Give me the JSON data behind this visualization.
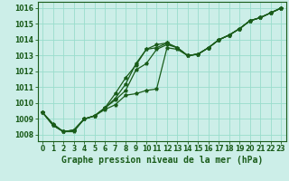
{
  "title": "Graphe pression niveau de la mer (hPa)",
  "bg_color": "#cceee8",
  "grid_color": "#99ddcc",
  "line_color": "#1a5c1a",
  "ylim": [
    1007.6,
    1016.4
  ],
  "xlim": [
    -0.5,
    23.5
  ],
  "yticks": [
    1008,
    1009,
    1010,
    1011,
    1012,
    1013,
    1014,
    1015,
    1016
  ],
  "xticks": [
    0,
    1,
    2,
    3,
    4,
    5,
    6,
    7,
    8,
    9,
    10,
    11,
    12,
    13,
    14,
    15,
    16,
    17,
    18,
    19,
    20,
    21,
    22,
    23
  ],
  "line1": [
    1009.4,
    1008.7,
    1008.2,
    1008.2,
    1009.0,
    1009.2,
    1009.6,
    1009.9,
    1010.5,
    1010.6,
    1010.8,
    1010.9,
    1013.5,
    1013.4,
    1013.0,
    1013.1,
    1013.5,
    1014.0,
    1014.3,
    1014.7,
    1015.2,
    1015.4,
    1015.7,
    1016.0
  ],
  "line2": [
    1009.4,
    1008.6,
    1008.2,
    1008.3,
    1009.0,
    1009.2,
    1009.7,
    1010.2,
    1010.8,
    1012.1,
    1012.5,
    1013.4,
    1013.7,
    1013.5,
    1013.0,
    1013.1,
    1013.5,
    1014.0,
    1014.3,
    1014.7,
    1015.2,
    1015.4,
    1015.7,
    1016.0
  ],
  "line3": [
    1009.4,
    1008.6,
    1008.2,
    1008.3,
    1009.0,
    1009.2,
    1009.7,
    1010.6,
    1011.6,
    1012.4,
    1013.4,
    1013.7,
    1013.8,
    1013.5,
    1013.0,
    1013.1,
    1013.5,
    1014.0,
    1014.3,
    1014.7,
    1015.2,
    1015.4,
    1015.7,
    1016.0
  ],
  "line4": [
    1009.4,
    1008.6,
    1008.2,
    1008.3,
    1009.0,
    1009.2,
    1009.7,
    1010.3,
    1011.2,
    1012.5,
    1013.4,
    1013.5,
    1013.8,
    1013.5,
    1013.0,
    1013.1,
    1013.5,
    1014.0,
    1014.3,
    1014.7,
    1015.2,
    1015.4,
    1015.7,
    1016.0
  ],
  "title_fontsize": 7,
  "tick_fontsize": 5.5
}
